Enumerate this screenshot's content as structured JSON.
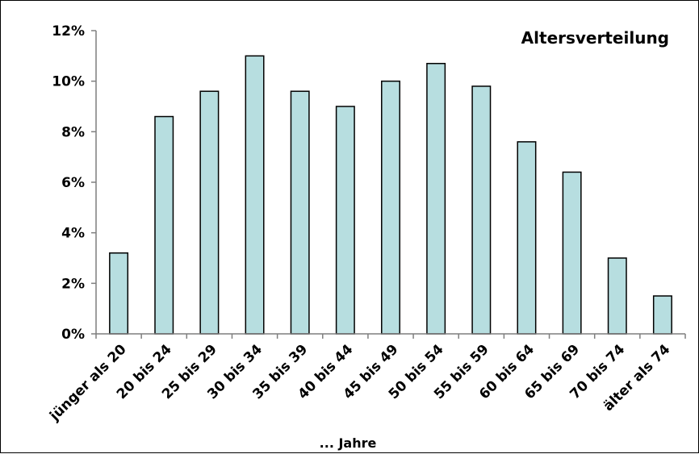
{
  "chart_data": {
    "type": "bar",
    "title": "Altersverteilung",
    "xlabel": "... Jahre",
    "ylabel": "",
    "categories": [
      "jünger als 20",
      "20 bis 24",
      "25 bis 29",
      "30 bis 34",
      "35 bis 39",
      "40 bis 44",
      "45 bis 49",
      "50 bis 54",
      "55 bis 59",
      "60 bis 64",
      "65 bis 69",
      "70 bis 74",
      "älter als 74"
    ],
    "values": [
      3.2,
      8.6,
      9.6,
      11.0,
      9.6,
      9.0,
      10.0,
      10.7,
      9.8,
      7.6,
      6.4,
      3.0,
      1.5
    ],
    "ylim": [
      0,
      12
    ],
    "yticks": [
      0,
      2,
      4,
      6,
      8,
      10,
      12
    ],
    "ytick_labels": [
      "0%",
      "2%",
      "4%",
      "6%",
      "8%",
      "10%",
      "12%"
    ],
    "grid": false,
    "legend": "none",
    "colors": {
      "bar_fill": "#b7dee0",
      "bar_stroke": "#000000",
      "axis": "#7f7f7f",
      "text": "#000000"
    }
  }
}
